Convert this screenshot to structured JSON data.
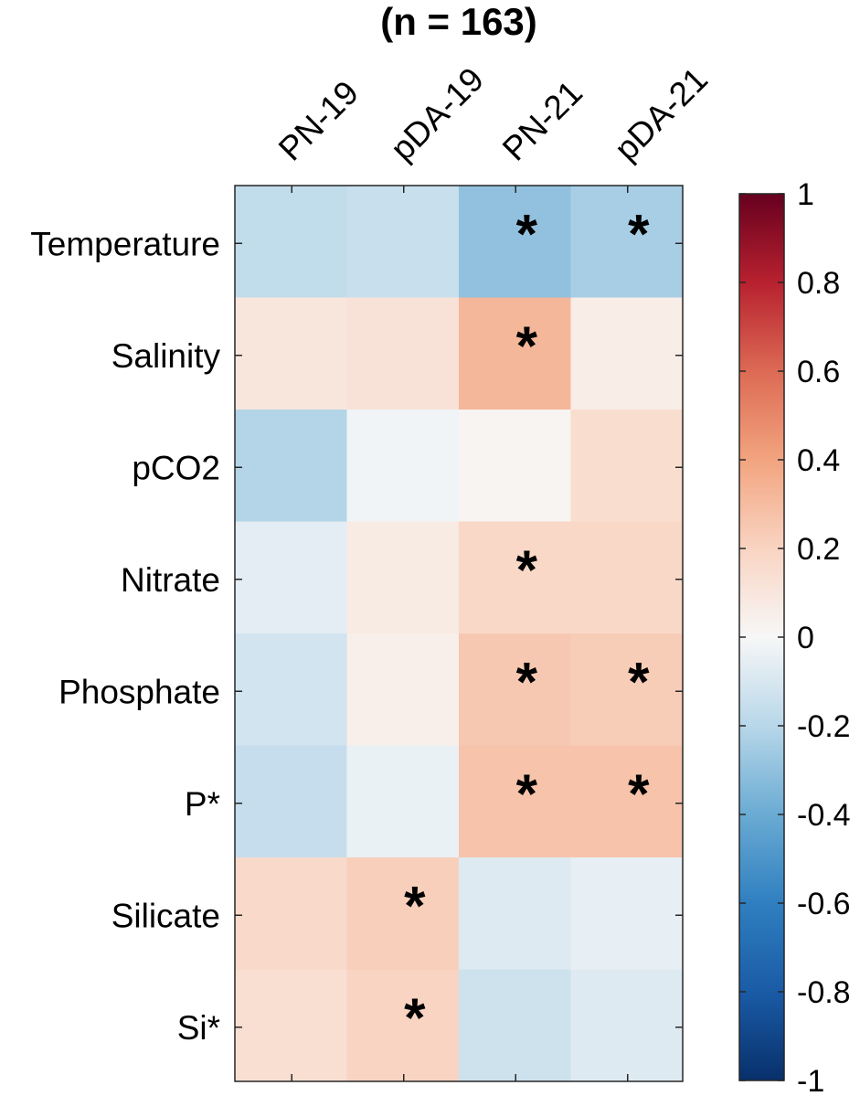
{
  "chart_data": {
    "type": "heatmap",
    "title": "(n = 163)",
    "columns": [
      "PN-19",
      "pDA-19",
      "PN-21",
      "pDA-21"
    ],
    "rows": [
      "Temperature",
      "Salinity",
      "pCO2",
      "Nitrate",
      "Phosphate",
      "P*",
      "Silicate",
      "Si*"
    ],
    "values": [
      [
        -0.17,
        -0.15,
        -0.3,
        -0.24
      ],
      [
        0.1,
        0.12,
        0.32,
        0.06
      ],
      [
        -0.21,
        -0.02,
        0.02,
        0.15
      ],
      [
        -0.06,
        0.07,
        0.18,
        0.18
      ],
      [
        -0.12,
        0.05,
        0.25,
        0.23
      ],
      [
        -0.16,
        -0.04,
        0.27,
        0.27
      ],
      [
        0.17,
        0.22,
        -0.08,
        -0.05
      ],
      [
        0.14,
        0.2,
        -0.13,
        -0.08
      ]
    ],
    "significance_marker": "*",
    "significant": [
      [
        false,
        false,
        true,
        true
      ],
      [
        false,
        false,
        true,
        false
      ],
      [
        false,
        false,
        false,
        false
      ],
      [
        false,
        false,
        true,
        false
      ],
      [
        false,
        false,
        true,
        true
      ],
      [
        false,
        false,
        true,
        true
      ],
      [
        false,
        true,
        false,
        false
      ],
      [
        false,
        true,
        false,
        false
      ]
    ],
    "colorbar": {
      "range": [
        -1,
        1
      ],
      "ticks": [
        "1",
        "0.8",
        "0.6",
        "0.4",
        "0.2",
        "0",
        "-0.2",
        "-0.4",
        "-0.6",
        "-0.8",
        "-1"
      ],
      "tick_values": [
        1,
        0.8,
        0.6,
        0.4,
        0.2,
        0,
        -0.2,
        -0.4,
        -0.6,
        -0.8,
        -1
      ],
      "colormap_stops": [
        {
          "v": -1.0,
          "c": "#08306b"
        },
        {
          "v": -0.8,
          "c": "#1a5ba6"
        },
        {
          "v": -0.6,
          "c": "#2f7fc0"
        },
        {
          "v": -0.4,
          "c": "#6aabd3"
        },
        {
          "v": -0.2,
          "c": "#b8d7e9"
        },
        {
          "v": 0.0,
          "c": "#f7f7f7"
        },
        {
          "v": 0.2,
          "c": "#f9d4c2"
        },
        {
          "v": 0.4,
          "c": "#f2a47f"
        },
        {
          "v": 0.6,
          "c": "#dc6a54"
        },
        {
          "v": 0.8,
          "c": "#b8212f"
        },
        {
          "v": 1.0,
          "c": "#67001f"
        }
      ]
    }
  }
}
